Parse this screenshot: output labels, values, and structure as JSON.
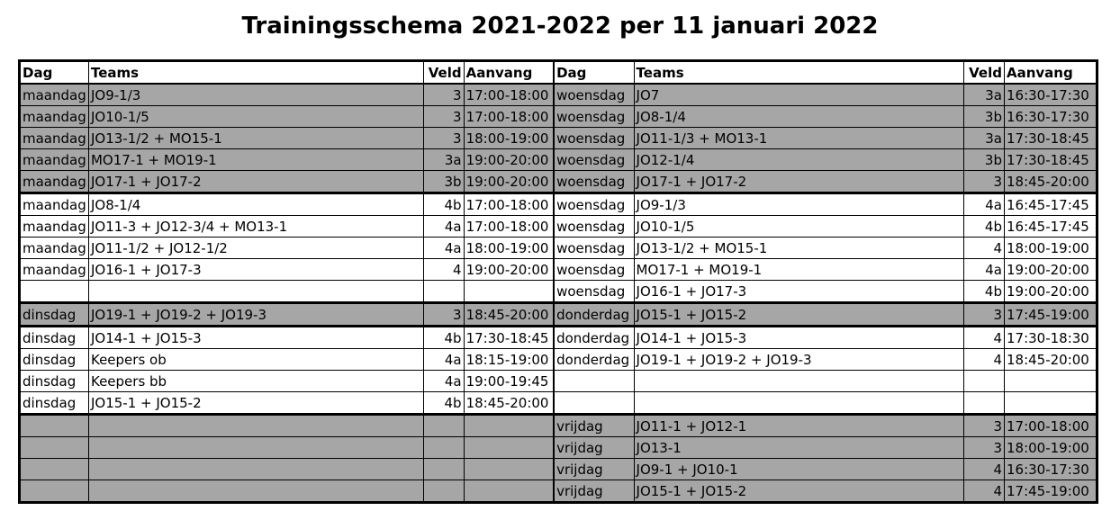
{
  "title": "Trainingsschema 2021-2022 per 11 januari 2022",
  "headers": [
    "Dag",
    "Teams",
    "Veld",
    "Aanvang",
    "Dag",
    "Teams",
    "Veld",
    "Aanvang"
  ],
  "colors": {
    "shaded": "#a6a6a6",
    "plain": "#ffffff"
  },
  "rows": [
    {
      "shaded": true,
      "left": [
        "maandag",
        "JO9-1/3",
        "3",
        "17:00-18:00"
      ],
      "right": [
        "woensdag",
        "JO7",
        "3a",
        "16:30-17:30"
      ]
    },
    {
      "shaded": true,
      "left": [
        "maandag",
        "JO10-1/5",
        "3",
        "17:00-18:00"
      ],
      "right": [
        "woensdag",
        "JO8-1/4",
        "3b",
        "16:30-17:30"
      ]
    },
    {
      "shaded": true,
      "left": [
        "maandag",
        "JO13-1/2 + MO15-1",
        "3",
        "18:00-19:00"
      ],
      "right": [
        "woensdag",
        "JO11-1/3 + MO13-1",
        "3a",
        "17:30-18:45"
      ]
    },
    {
      "shaded": true,
      "left": [
        "maandag",
        "MO17-1 + MO19-1",
        "3a",
        "19:00-20:00"
      ],
      "right": [
        "woensdag",
        "JO12-1/4",
        "3b",
        "17:30-18:45"
      ]
    },
    {
      "shaded": true,
      "left": [
        "maandag",
        "JO17-1 + JO17-2",
        "3b",
        "19:00-20:00"
      ],
      "right": [
        "woensdag",
        "JO17-1 + JO17-2",
        "3",
        "18:45-20:00"
      ]
    },
    {
      "shaded": false,
      "left": [
        "maandag",
        "JO8-1/4",
        "4b",
        "17:00-18:00"
      ],
      "right": [
        "woensdag",
        "JO9-1/3",
        "4a",
        "16:45-17:45"
      ]
    },
    {
      "shaded": false,
      "left": [
        "maandag",
        "JO11-3 + JO12-3/4 + MO13-1",
        "4a",
        "17:00-18:00"
      ],
      "right": [
        "woensdag",
        "JO10-1/5",
        "4b",
        "16:45-17:45"
      ]
    },
    {
      "shaded": false,
      "left": [
        "maandag",
        "JO11-1/2 + JO12-1/2",
        "4a",
        "18:00-19:00"
      ],
      "right": [
        "woensdag",
        "JO13-1/2 + MO15-1",
        "4",
        "18:00-19:00"
      ]
    },
    {
      "shaded": false,
      "left": [
        "maandag",
        "JO16-1 + JO17-3",
        "4",
        "19:00-20:00"
      ],
      "right": [
        "woensdag",
        "MO17-1 + MO19-1",
        "4a",
        "19:00-20:00"
      ]
    },
    {
      "shaded": false,
      "left": [
        "",
        "",
        "",
        ""
      ],
      "right": [
        "woensdag",
        "JO16-1 + JO17-3",
        "4b",
        "19:00-20:00"
      ]
    },
    {
      "shaded": true,
      "left": [
        "dinsdag",
        "JO19-1 + JO19-2 + JO19-3",
        "3",
        "18:45-20:00"
      ],
      "right": [
        "donderdag",
        "JO15-1 + JO15-2",
        "3",
        "17:45-19:00"
      ]
    },
    {
      "shaded": false,
      "left": [
        "dinsdag",
        "JO14-1 + JO15-3",
        "4b",
        "17:30-18:45"
      ],
      "right": [
        "donderdag",
        "JO14-1 + JO15-3",
        "4",
        "17:30-18:30"
      ]
    },
    {
      "shaded": false,
      "left": [
        "dinsdag",
        "Keepers ob",
        "4a",
        "18:15-19:00"
      ],
      "right": [
        "donderdag",
        "JO19-1 + JO19-2 + JO19-3",
        "4",
        "18:45-20:00"
      ]
    },
    {
      "shaded": false,
      "left": [
        "dinsdag",
        "Keepers bb",
        "4a",
        "19:00-19:45"
      ],
      "right": [
        "",
        "",
        "",
        ""
      ]
    },
    {
      "shaded": false,
      "left": [
        "dinsdag",
        "JO15-1 + JO15-2",
        "4b",
        "18:45-20:00"
      ],
      "right": [
        "",
        "",
        "",
        ""
      ]
    },
    {
      "shaded": true,
      "left": [
        "",
        "",
        "",
        ""
      ],
      "right": [
        "vrijdag",
        "JO11-1 + JO12-1",
        "3",
        "17:00-18:00"
      ]
    },
    {
      "shaded": true,
      "left": [
        "",
        "",
        "",
        ""
      ],
      "right": [
        "vrijdag",
        "JO13-1",
        "3",
        "18:00-19:00"
      ]
    },
    {
      "shaded": true,
      "left": [
        "",
        "",
        "",
        ""
      ],
      "right": [
        "vrijdag",
        "JO9-1 + JO10-1",
        "4",
        "16:30-17:30"
      ]
    },
    {
      "shaded": true,
      "left": [
        "",
        "",
        "",
        ""
      ],
      "right": [
        "vrijdag",
        "JO15-1 + JO15-2",
        "4",
        "17:45-19:00"
      ]
    }
  ]
}
